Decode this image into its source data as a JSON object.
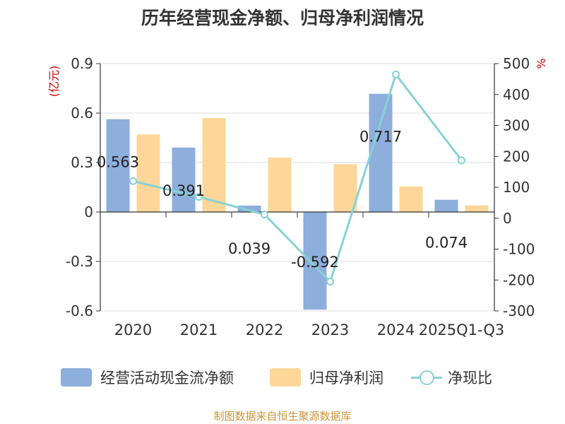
{
  "chart_data": {
    "type": "bar",
    "title": "历年经营现金净额、归母净利润情况",
    "categories": [
      "2020",
      "2021",
      "2022",
      "2023",
      "2024",
      "2025Q1-Q3"
    ],
    "y_left": {
      "unit": "(亿元)",
      "ylim": [
        -0.6,
        0.9
      ],
      "ticks": [
        "0.9",
        "0.6",
        "0.3",
        "0",
        "-0.3",
        "-0.6"
      ]
    },
    "y_right": {
      "unit": "%",
      "ylim": [
        -300,
        500
      ],
      "ticks": [
        "500",
        "400",
        "300",
        "200",
        "100",
        "0",
        "-100",
        "-200",
        "-300"
      ]
    },
    "grid": true,
    "legend_position": "bottom",
    "series": [
      {
        "name": "经营活动现金流净额",
        "kind": "bar",
        "axis": "left",
        "color": "#8eaedc",
        "values": [
          0.563,
          0.391,
          0.039,
          -0.592,
          0.717,
          0.074
        ],
        "labels": [
          "0.563",
          "0.391",
          "0.039",
          "-0.592",
          "0.717",
          "0.074"
        ]
      },
      {
        "name": "归母净利润",
        "kind": "bar",
        "axis": "left",
        "color": "#fdd799",
        "values": [
          0.47,
          0.57,
          0.33,
          0.29,
          0.155,
          0.04
        ]
      },
      {
        "name": "净现比",
        "kind": "line",
        "axis": "right",
        "color": "#87d1d6",
        "values": [
          120,
          69,
          12,
          -205,
          465,
          187
        ]
      }
    ]
  },
  "source": "制图数据来自恒生聚源数据库"
}
